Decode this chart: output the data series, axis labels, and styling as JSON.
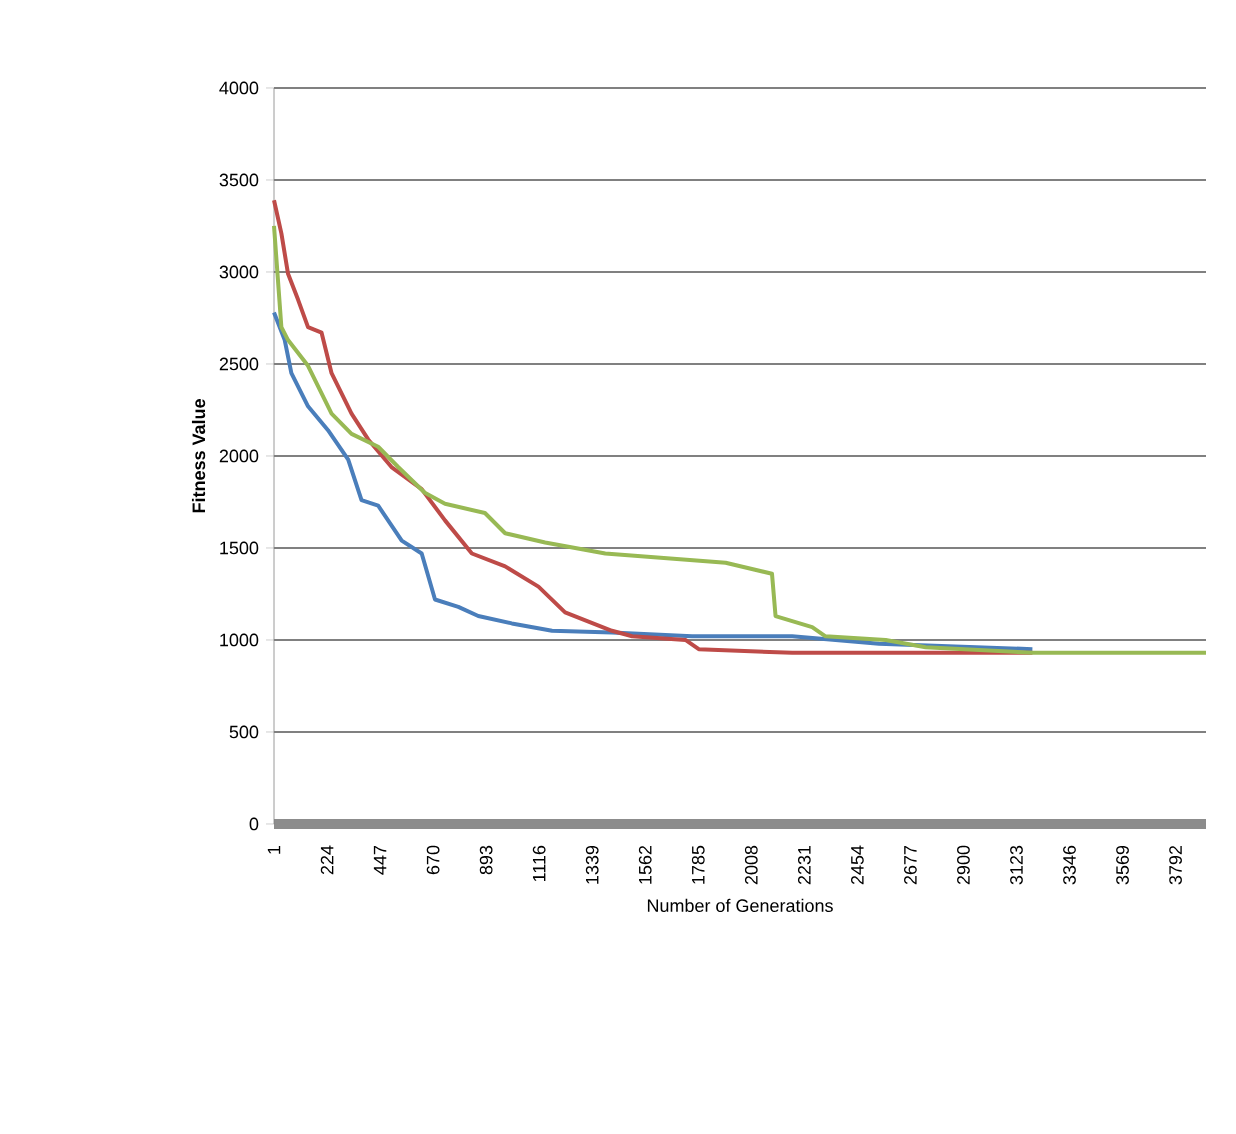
{
  "chart_data": {
    "type": "line",
    "xlabel": "Number of Generations",
    "ylabel": "Fitness Value",
    "xlim": [
      1,
      3920
    ],
    "xticks": [
      1,
      224,
      447,
      670,
      893,
      1116,
      1339,
      1562,
      1785,
      2008,
      2231,
      2454,
      2677,
      2900,
      3123,
      3346,
      3569,
      3792
    ],
    "ylim": [
      0,
      4000
    ],
    "yticks": [
      0,
      500,
      1000,
      1500,
      2000,
      2500,
      3000,
      3500,
      4000
    ],
    "grid": "y",
    "marker": "none",
    "series": [
      {
        "color": "#4a7ebb",
        "x": [
          1,
          46,
          74,
          144,
          228,
          313,
          369,
          439,
          538,
          622,
          678,
          776,
          860,
          1001,
          1170,
          1422,
          1759,
          2180,
          2545,
          3190
        ],
        "values": [
          2780,
          2630,
          2450,
          2270,
          2140,
          1980,
          1760,
          1730,
          1540,
          1470,
          1220,
          1180,
          1130,
          1090,
          1050,
          1040,
          1020,
          1020,
          980,
          950
        ]
      },
      {
        "color": "#be4b48",
        "x": [
          1,
          32,
          60,
          102,
          144,
          201,
          243,
          327,
          397,
          495,
          622,
          720,
          833,
          973,
          1113,
          1225,
          1422,
          1507,
          1731,
          1787,
          2180,
          2741,
          3190
        ],
        "values": [
          3390,
          3210,
          2990,
          2850,
          2700,
          2670,
          2450,
          2230,
          2090,
          1940,
          1820,
          1650,
          1470,
          1400,
          1290,
          1150,
          1050,
          1020,
          1000,
          950,
          930,
          930,
          930
        ]
      },
      {
        "color": "#98b954",
        "x": [
          1,
          32,
          60,
          144,
          243,
          327,
          439,
          523,
          635,
          720,
          888,
          973,
          1141,
          1394,
          1900,
          2095,
          2110,
          2264,
          2320,
          2573,
          2741,
          3190,
          3920
        ],
        "values": [
          3250,
          2700,
          2630,
          2490,
          2230,
          2120,
          2050,
          1940,
          1800,
          1740,
          1690,
          1580,
          1530,
          1470,
          1420,
          1360,
          1130,
          1070,
          1020,
          1000,
          960,
          930,
          930
        ]
      }
    ]
  }
}
